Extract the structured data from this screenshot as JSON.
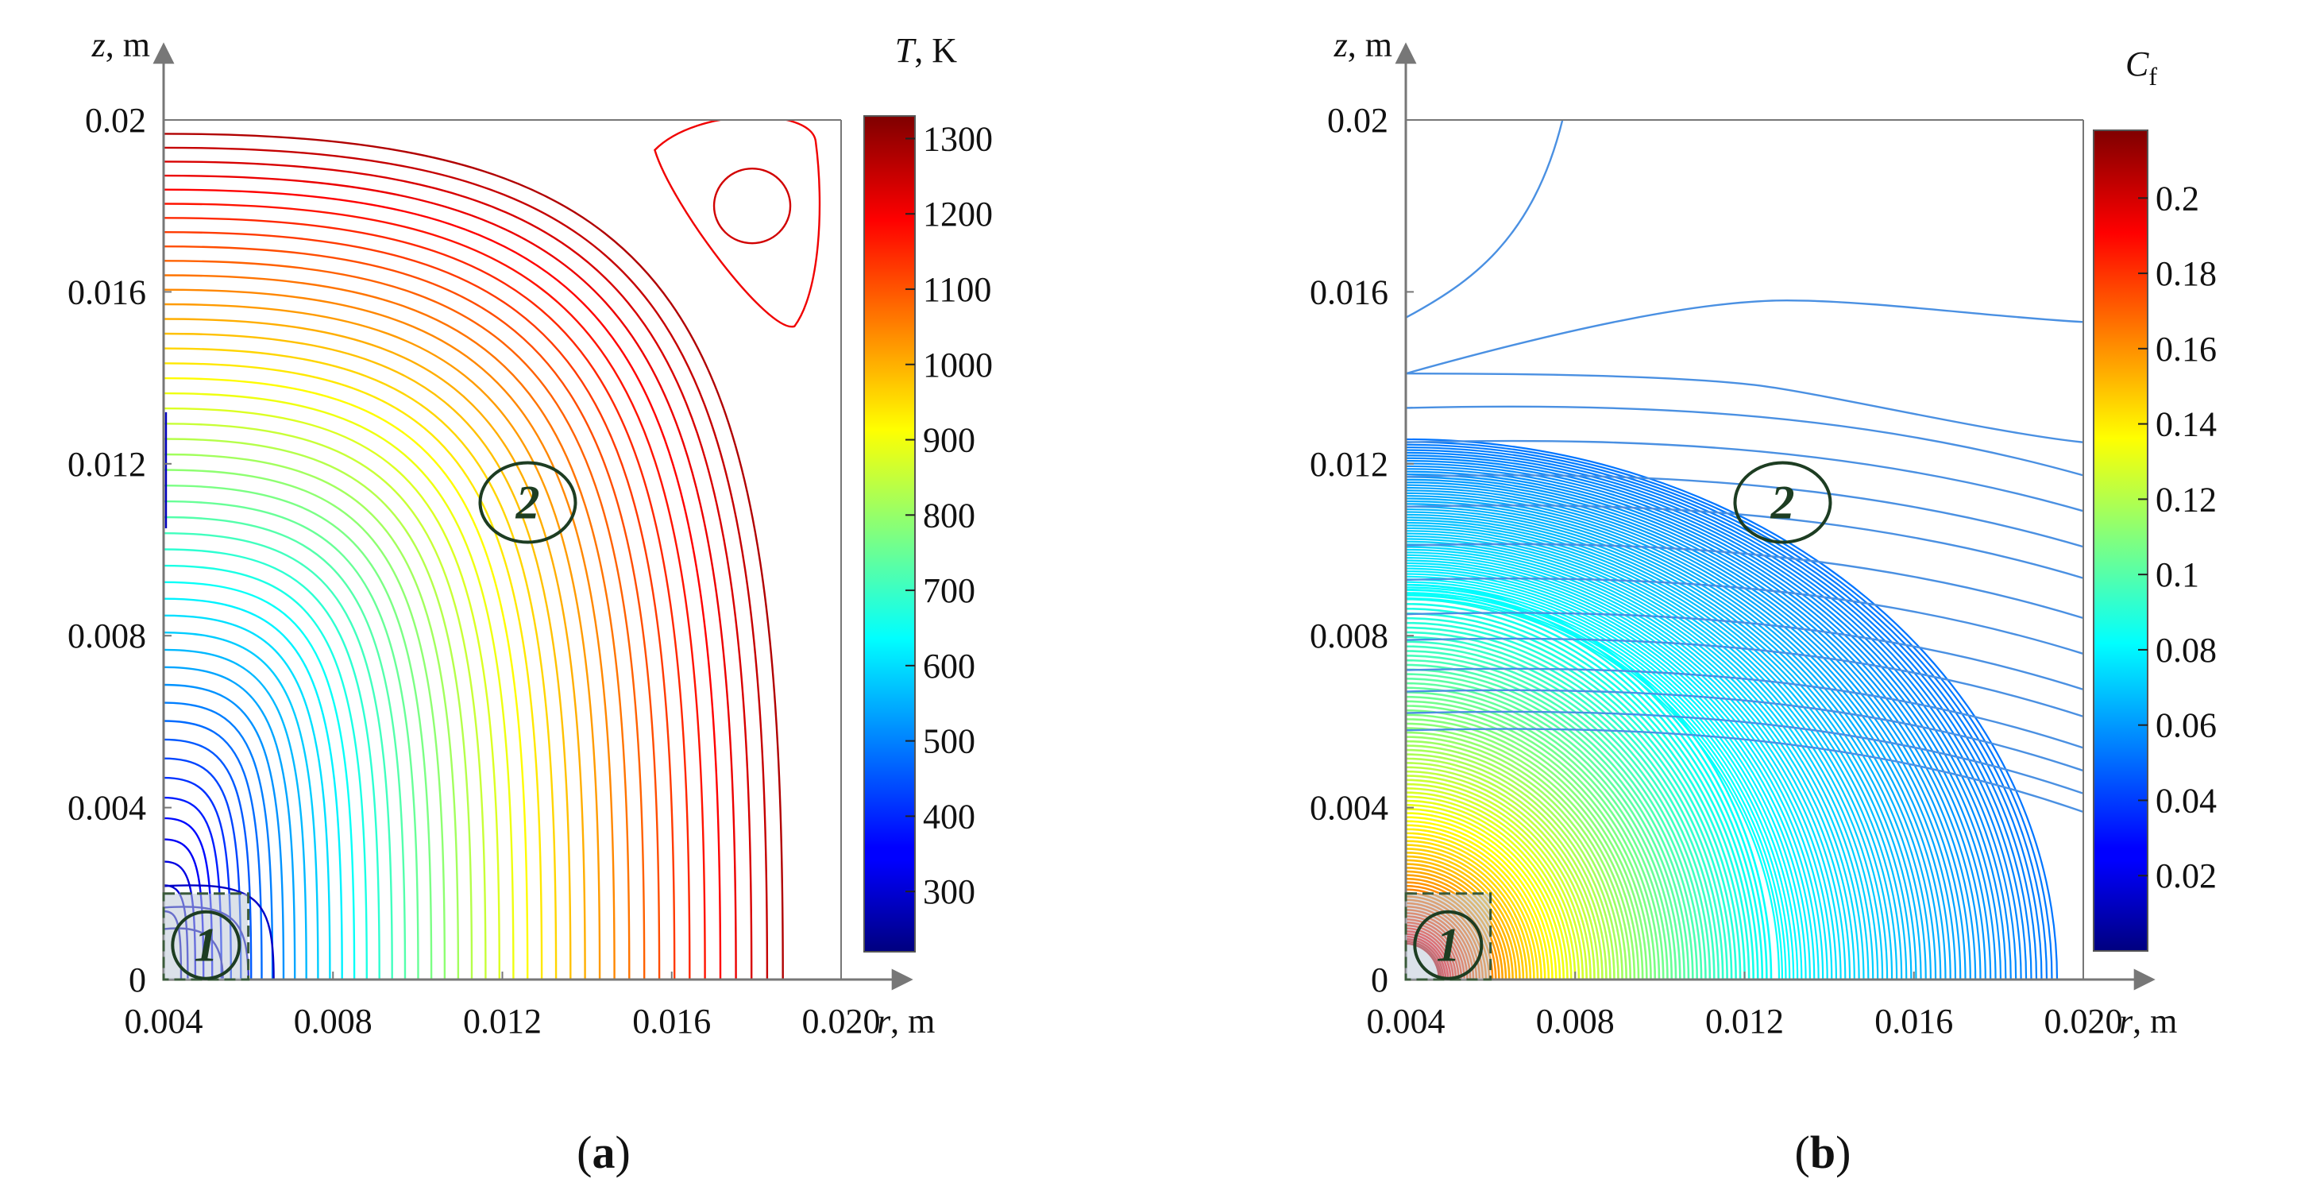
{
  "chart_data": [
    {
      "type": "contour",
      "panel_label": "a",
      "title": "",
      "xlabel": "r, m",
      "xlabel_var": "r",
      "xlabel_unit": ", m",
      "ylabel": "z, m",
      "ylabel_var": "z",
      "ylabel_unit": ", m",
      "xlim": [
        0.004,
        0.02
      ],
      "ylim": [
        0,
        0.02
      ],
      "xticks": [
        0.004,
        0.008,
        0.012,
        0.016,
        0.02
      ],
      "xtick_labels": [
        "0.004",
        "0.008",
        "0.012",
        "0.016",
        "0.020"
      ],
      "yticks": [
        0,
        0.004,
        0.008,
        0.012,
        0.016,
        0.02
      ],
      "ytick_labels": [
        "0",
        "0.004",
        "0.008",
        "0.012",
        "0.016",
        "0.02"
      ],
      "colorbar": {
        "label": "T, K",
        "label_var": "T",
        "label_unit": ", K",
        "range": [
          220,
          1330
        ],
        "ticks": [
          300,
          400,
          500,
          600,
          700,
          800,
          900,
          1000,
          1100,
          1200,
          1300
        ],
        "tick_labels": [
          "300",
          "400",
          "500",
          "600",
          "700",
          "800",
          "900",
          "1000",
          "1100",
          "1200",
          "1300"
        ]
      },
      "contour_levels": 48,
      "regions": [
        {
          "label": "1",
          "r": 0.005,
          "z": 0.0008
        },
        {
          "label": "2",
          "r": 0.0126,
          "z": 0.0111
        }
      ]
    },
    {
      "type": "contour",
      "panel_label": "b",
      "title": "",
      "xlabel": "r, m",
      "xlabel_var": "r",
      "xlabel_unit": ", m",
      "ylabel": "z, m",
      "ylabel_var": "z",
      "ylabel_unit": ", m",
      "xlim": [
        0.004,
        0.02
      ],
      "ylim": [
        0,
        0.02
      ],
      "xticks": [
        0.004,
        0.008,
        0.012,
        0.016,
        0.02
      ],
      "xtick_labels": [
        "0.004",
        "0.008",
        "0.012",
        "0.016",
        "0.020"
      ],
      "yticks": [
        0,
        0.004,
        0.008,
        0.012,
        0.016,
        0.02
      ],
      "ytick_labels": [
        "0",
        "0.004",
        "0.008",
        "0.012",
        "0.016",
        "0.02"
      ],
      "colorbar": {
        "label": "Cf",
        "label_var": "C",
        "label_sub": "f",
        "range": [
          0,
          0.218
        ],
        "ticks": [
          0.02,
          0.04,
          0.06,
          0.08,
          0.1,
          0.12,
          0.14,
          0.16,
          0.18,
          0.2
        ],
        "tick_labels": [
          "0.02",
          "0.04",
          "0.06",
          "0.08",
          "0.1",
          "0.12",
          "0.14",
          "0.16",
          "0.18",
          "0.2"
        ]
      },
      "contour_levels": 60,
      "regions": [
        {
          "label": "1",
          "r": 0.005,
          "z": 0.0008
        },
        {
          "label": "2",
          "r": 0.0129,
          "z": 0.0111
        }
      ]
    }
  ]
}
